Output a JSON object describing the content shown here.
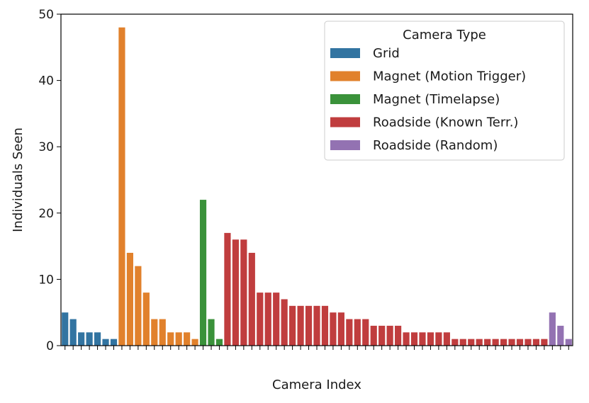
{
  "chart_data": {
    "type": "bar",
    "xlabel": "Camera Index",
    "ylabel": "Individuals Seen",
    "ylim": [
      0,
      50
    ],
    "yticks": [
      0,
      10,
      20,
      30,
      40,
      50
    ],
    "grid": false,
    "legend_placement": "top-right",
    "legend_title": "Camera Type",
    "series": [
      {
        "name": "Grid",
        "color": "#3274a1",
        "values": [
          5,
          4,
          2,
          2,
          2,
          1,
          1
        ]
      },
      {
        "name": "Magnet (Motion Trigger)",
        "color": "#e1812c",
        "values": [
          48,
          14,
          12,
          8,
          4,
          4,
          2,
          2,
          2,
          1
        ]
      },
      {
        "name": "Magnet (Timelapse)",
        "color": "#3a923a",
        "values": [
          22,
          4,
          1
        ]
      },
      {
        "name": "Roadside (Known Terr.)",
        "color": "#c03d3e",
        "values": [
          17,
          16,
          16,
          14,
          8,
          8,
          8,
          7,
          6,
          6,
          6,
          6,
          6,
          5,
          5,
          4,
          4,
          4,
          3,
          3,
          3,
          3,
          2,
          2,
          2,
          2,
          2,
          2,
          1,
          1,
          1,
          1,
          1,
          1,
          1,
          1,
          1,
          1,
          1,
          1
        ]
      },
      {
        "name": "Roadside (Random)",
        "color": "#9372b2",
        "values": [
          5,
          3,
          1
        ]
      }
    ]
  }
}
